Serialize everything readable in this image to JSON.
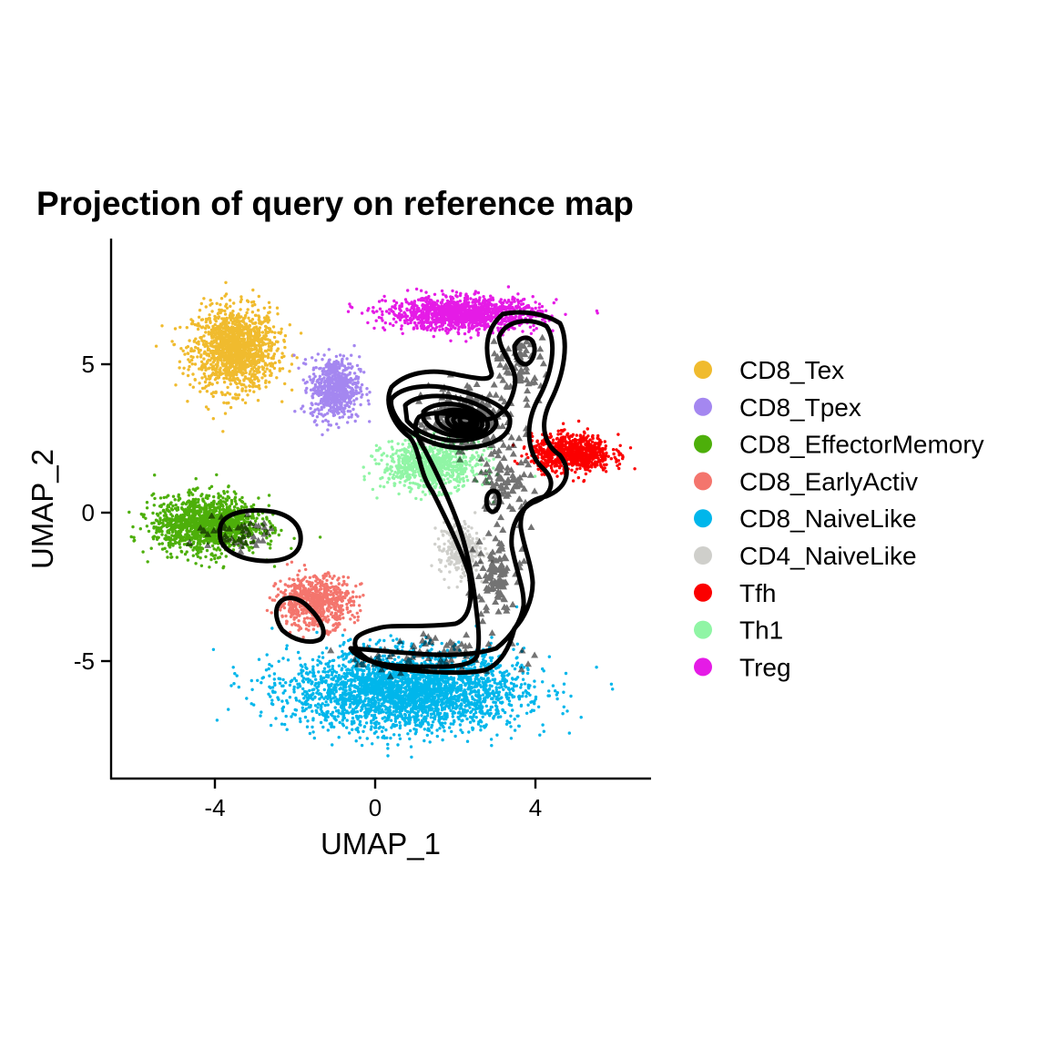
{
  "chart_data": {
    "type": "scatter",
    "title": "Projection of query on reference map",
    "xlabel": "UMAP_1",
    "ylabel": "UMAP_2",
    "xlim": [
      -6.5,
      7
    ],
    "ylim": [
      -9,
      9
    ],
    "x_ticks": [
      -4,
      0,
      4
    ],
    "x_tick_labels": [
      "-4",
      "0",
      "4"
    ],
    "y_ticks": [
      -5,
      0,
      5
    ],
    "y_tick_labels": [
      "-5",
      "0",
      "5"
    ],
    "grid": false,
    "legend_position": "right",
    "series": [
      {
        "name": "CD8_Tex",
        "color": "#F0BB2E",
        "centroid": [
          -3.5,
          5.5
        ],
        "spread": [
          0.95,
          1.25
        ],
        "count": 1400
      },
      {
        "name": "CD8_Tpex",
        "color": "#A487F0",
        "centroid": [
          -1.0,
          4.2
        ],
        "spread": [
          0.55,
          0.95
        ],
        "count": 650
      },
      {
        "name": "CD8_EffectorMemory",
        "color": "#4DAF0A",
        "centroid": [
          -4.2,
          -0.4
        ],
        "spread": [
          1.2,
          0.85
        ],
        "count": 1400
      },
      {
        "name": "CD8_EarlyActiv",
        "color": "#F4756D",
        "centroid": [
          -1.5,
          -3.0
        ],
        "spread": [
          0.85,
          0.8
        ],
        "count": 700
      },
      {
        "name": "CD8_NaiveLike",
        "color": "#00B6EB",
        "centroid": [
          0.8,
          -6.0
        ],
        "spread": [
          2.6,
          1.2
        ],
        "count": 3000
      },
      {
        "name": "CD4_NaiveLike",
        "color": "#CFCFCB",
        "centroid": [
          2.1,
          -1.2
        ],
        "spread": [
          0.45,
          0.8
        ],
        "count": 300
      },
      {
        "name": "Tfh",
        "color": "#FB0000",
        "centroid": [
          4.9,
          2.0
        ],
        "spread": [
          0.9,
          0.55
        ],
        "count": 850
      },
      {
        "name": "Th1",
        "color": "#90F5A5",
        "centroid": [
          1.4,
          1.6
        ],
        "spread": [
          1.1,
          0.75
        ],
        "count": 800
      },
      {
        "name": "Treg",
        "color": "#E51BE6",
        "centroid": [
          2.2,
          6.7
        ],
        "spread": [
          1.7,
          0.5
        ],
        "count": 1300
      }
    ],
    "query_points": {
      "marker": "triangle",
      "color": "#000000",
      "count": 650
    },
    "density_contours": {
      "color": "#000000",
      "peak": [
        2.3,
        3.1
      ],
      "levels": 10
    }
  }
}
